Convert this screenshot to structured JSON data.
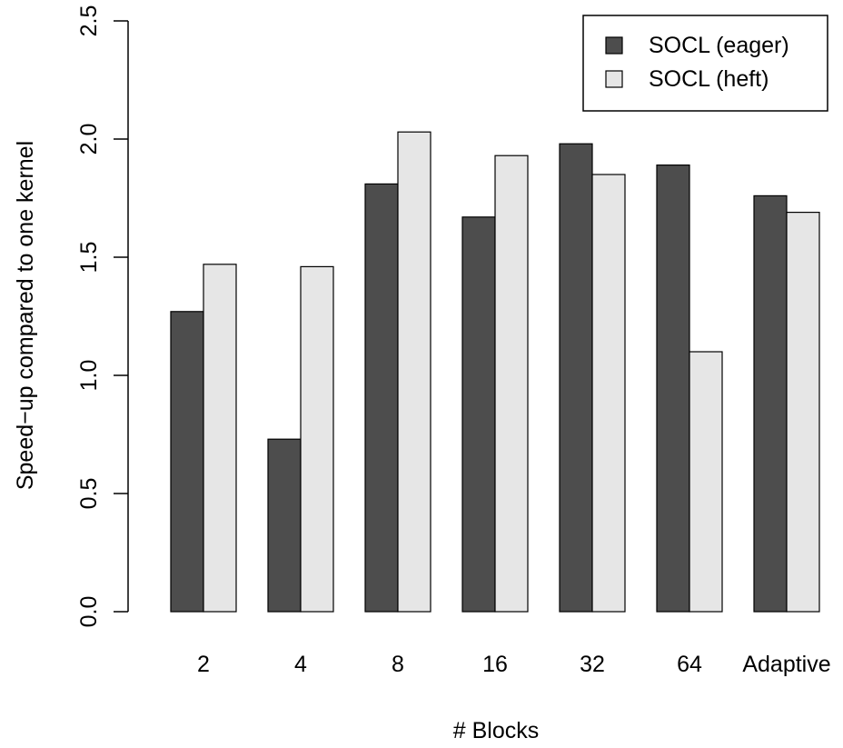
{
  "chart_data": {
    "type": "bar",
    "title": "",
    "xlabel": "# Blocks",
    "ylabel": "Speed−up compared to one kernel",
    "categories": [
      "2",
      "4",
      "8",
      "16",
      "32",
      "64",
      "Adaptive"
    ],
    "series": [
      {
        "name": "SOCL (eager)",
        "color": "#4d4d4d",
        "values": [
          1.27,
          0.73,
          1.81,
          1.67,
          1.98,
          1.89,
          1.76
        ]
      },
      {
        "name": "SOCL (heft)",
        "color": "#e6e6e6",
        "values": [
          1.47,
          1.46,
          2.03,
          1.93,
          1.85,
          1.1,
          1.69
        ]
      }
    ],
    "ylim": [
      0,
      2.5
    ],
    "yticks": [
      0.0,
      0.5,
      1.0,
      1.5,
      2.0,
      2.5
    ],
    "ytick_labels": [
      "0.0",
      "0.5",
      "1.0",
      "1.5",
      "2.0",
      "2.5"
    ],
    "grid": false,
    "legend_position": "top-right"
  }
}
